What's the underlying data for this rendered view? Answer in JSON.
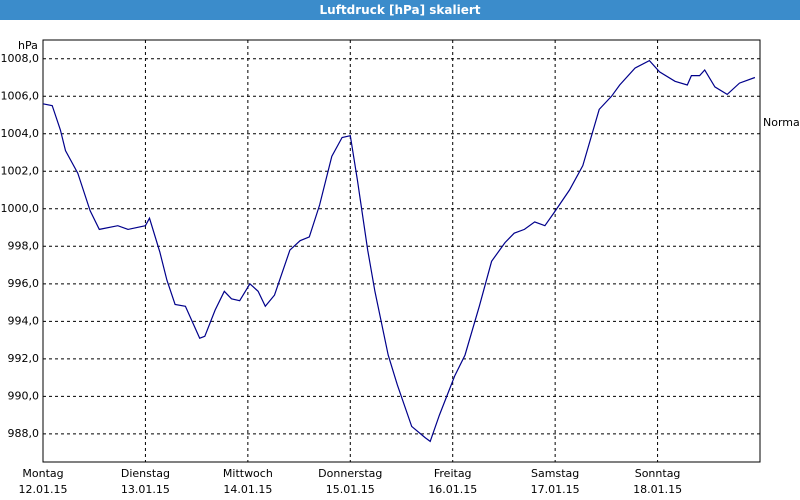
{
  "chart_data": {
    "type": "line",
    "title": "Luftdruck [hPa] skaliert",
    "y_label": "hPa",
    "annotation": "Normal",
    "x": [
      0,
      0.09,
      0.17,
      0.22,
      0.34,
      0.46,
      0.55,
      0.73,
      0.83,
      1.0,
      1.04,
      1.14,
      1.21,
      1.29,
      1.39,
      1.53,
      1.58,
      1.68,
      1.77,
      1.84,
      1.92,
      2.02,
      2.1,
      2.17,
      2.26,
      2.41,
      2.51,
      2.6,
      2.7,
      2.82,
      2.92,
      3.0,
      3.07,
      3.17,
      3.24,
      3.37,
      3.46,
      3.6,
      3.73,
      3.78,
      3.87,
      4.02,
      4.12,
      4.26,
      4.38,
      4.51,
      4.6,
      4.7,
      4.8,
      4.9,
      4.99,
      5.14,
      5.27,
      5.43,
      5.55,
      5.63,
      5.78,
      5.92,
      6.02,
      6.17,
      6.29,
      6.33,
      6.41,
      6.46,
      6.56,
      6.68,
      6.8,
      6.95
    ],
    "series": [
      {
        "name": "Luftdruck",
        "color": "#00008b",
        "values": [
          1005.6,
          1005.5,
          1004.2,
          1003.1,
          1001.9,
          999.9,
          998.9,
          999.1,
          998.9,
          999.1,
          999.5,
          997.7,
          996.2,
          994.9,
          994.8,
          993.1,
          993.2,
          994.6,
          995.6,
          995.2,
          995.1,
          996.0,
          995.6,
          994.8,
          995.4,
          997.8,
          998.3,
          998.5,
          1000.2,
          1002.8,
          1003.8,
          1003.9,
          1001.5,
          997.8,
          995.6,
          992.2,
          990.6,
          988.4,
          987.8,
          987.6,
          989.0,
          991.1,
          992.2,
          994.8,
          997.2,
          998.2,
          998.7,
          998.9,
          999.3,
          999.1,
          999.8,
          1001.0,
          1002.3,
          1005.3,
          1006.0,
          1006.6,
          1007.5,
          1007.9,
          1007.3,
          1006.8,
          1006.6,
          1007.1,
          1007.1,
          1007.4,
          1006.5,
          1006.1,
          1006.7,
          1007.0
        ]
      }
    ],
    "xlim": [
      0,
      7
    ],
    "xticks": [
      {
        "value": 0,
        "label": "Montag"
      },
      {
        "value": 1,
        "label": "Dienstag"
      },
      {
        "value": 2,
        "label": "Mittwoch"
      },
      {
        "value": 3,
        "label": "Donnerstag"
      },
      {
        "value": 4,
        "label": "Freitag"
      },
      {
        "value": 5,
        "label": "Samstag"
      },
      {
        "value": 6,
        "label": "Sonntag"
      }
    ],
    "xtick_dates": [
      "12.01.15",
      "13.01.15",
      "14.01.15",
      "15.01.15",
      "16.01.15",
      "17.01.15",
      "18.01.15"
    ],
    "ylim": [
      986.5,
      1009
    ],
    "yticks": [
      {
        "value": 988,
        "label": "988,0"
      },
      {
        "value": 990,
        "label": "990,0"
      },
      {
        "value": 992,
        "label": "992,0"
      },
      {
        "value": 994,
        "label": "994,0"
      },
      {
        "value": 996,
        "label": "996,0"
      },
      {
        "value": 998,
        "label": "998,0"
      },
      {
        "value": 1000,
        "label": "1000,0"
      },
      {
        "value": 1002,
        "label": "1002,0"
      },
      {
        "value": 1004,
        "label": "1004,0"
      },
      {
        "value": 1006,
        "label": "1006,0"
      },
      {
        "value": 1008,
        "label": "1008,0"
      }
    ],
    "grid": true
  }
}
